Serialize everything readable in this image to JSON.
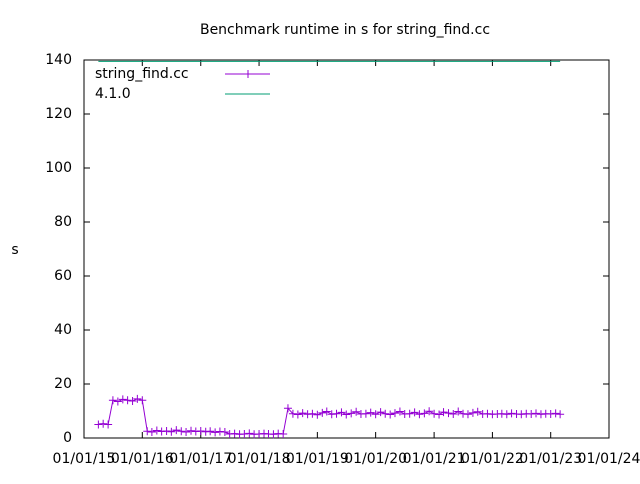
{
  "chart_data": {
    "type": "line",
    "title": "Benchmark runtime in s for string_find.cc",
    "y_label": "s",
    "xlim": [
      "2015-01-01",
      "2024-01-01"
    ],
    "xticks": [
      {
        "value": "2015-01-01",
        "label": "01/01/15"
      },
      {
        "value": "2016-01-01",
        "label": "01/01/16"
      },
      {
        "value": "2017-01-01",
        "label": "01/01/17"
      },
      {
        "value": "2018-01-01",
        "label": "01/01/18"
      },
      {
        "value": "2019-01-01",
        "label": "01/01/19"
      },
      {
        "value": "2020-01-01",
        "label": "01/01/20"
      },
      {
        "value": "2021-01-01",
        "label": "01/01/21"
      },
      {
        "value": "2022-01-01",
        "label": "01/01/22"
      },
      {
        "value": "2023-01-01",
        "label": "01/01/23"
      },
      {
        "value": "2024-01-01",
        "label": "01/01/24"
      }
    ],
    "ylim": [
      0,
      140
    ],
    "yticks": [
      0,
      20,
      40,
      60,
      80,
      100,
      120,
      140
    ],
    "legend": "top-left",
    "series": [
      {
        "name": "string_find.cc",
        "color": "#9400d3",
        "marker": "+",
        "x": [
          "2015-04-01",
          "2015-05-01",
          "2015-06-01",
          "2015-07-01",
          "2015-08-01",
          "2015-09-01",
          "2015-10-01",
          "2015-11-01",
          "2015-12-01",
          "2016-01-01",
          "2016-02-01",
          "2016-03-01",
          "2016-04-01",
          "2016-05-01",
          "2016-06-01",
          "2016-07-01",
          "2016-08-01",
          "2016-09-01",
          "2016-10-01",
          "2016-11-01",
          "2016-12-01",
          "2017-01-01",
          "2017-02-01",
          "2017-03-01",
          "2017-04-01",
          "2017-05-01",
          "2017-06-01",
          "2017-07-01",
          "2017-08-01",
          "2017-09-01",
          "2017-10-01",
          "2017-11-01",
          "2017-12-01",
          "2018-01-01",
          "2018-02-01",
          "2018-03-01",
          "2018-04-01",
          "2018-05-01",
          "2018-06-01",
          "2018-07-01",
          "2018-08-01",
          "2018-09-01",
          "2018-10-01",
          "2018-11-01",
          "2018-12-01",
          "2019-01-01",
          "2019-02-01",
          "2019-03-01",
          "2019-04-01",
          "2019-05-01",
          "2019-06-01",
          "2019-07-01",
          "2019-08-01",
          "2019-09-01",
          "2019-10-01",
          "2019-11-01",
          "2019-12-01",
          "2020-01-01",
          "2020-02-01",
          "2020-03-01",
          "2020-04-01",
          "2020-05-01",
          "2020-06-01",
          "2020-07-01",
          "2020-08-01",
          "2020-09-01",
          "2020-10-01",
          "2020-11-01",
          "2020-12-01",
          "2021-01-01",
          "2021-02-01",
          "2021-03-01",
          "2021-04-01",
          "2021-05-01",
          "2021-06-01",
          "2021-07-01",
          "2021-08-01",
          "2021-09-01",
          "2021-10-01",
          "2021-11-01",
          "2021-12-01",
          "2022-01-01",
          "2022-02-01",
          "2022-03-01",
          "2022-04-01",
          "2022-05-01",
          "2022-06-01",
          "2022-07-01",
          "2022-08-01",
          "2022-09-01",
          "2022-10-01",
          "2022-11-01",
          "2022-12-01",
          "2023-01-01",
          "2023-02-01",
          "2023-03-01"
        ],
        "values": [
          5,
          5.3,
          5,
          14,
          13.5,
          14.3,
          14,
          13.7,
          14.5,
          14,
          2.5,
          2.2,
          2.8,
          2.4,
          2.6,
          2.3,
          2.9,
          2.5,
          2.2,
          2.7,
          2.4,
          2.6,
          2.3,
          2.5,
          2.1,
          2.4,
          2.2,
          1.5,
          1.6,
          1.4,
          1.5,
          1.7,
          1.4,
          1.5,
          1.6,
          1.5,
          1.4,
          1.6,
          1.5,
          11,
          9,
          8.7,
          9.2,
          8.8,
          9,
          8.6,
          9.3,
          9.8,
          8.8,
          9,
          9.5,
          8.7,
          9.1,
          9.7,
          8.9,
          9,
          9.4,
          8.8,
          9.6,
          9,
          8.7,
          9.2,
          9.8,
          8.9,
          9,
          9.5,
          8.8,
          9.1,
          9.9,
          9,
          8.7,
          9.6,
          9.2,
          8.9,
          9.8,
          9,
          8.8,
          9.3,
          9.7,
          8.9,
          9,
          8.8,
          8.9,
          9,
          8.8,
          9.1,
          8.9,
          8.8,
          9,
          8.9,
          9.1,
          8.8,
          9,
          8.9,
          9.1,
          8.8
        ]
      },
      {
        "name": "4.1.0",
        "color": "#009e73",
        "x": [
          "2015-04-01",
          "2023-03-01"
        ],
        "values": [
          139.5,
          139.5
        ]
      }
    ]
  }
}
